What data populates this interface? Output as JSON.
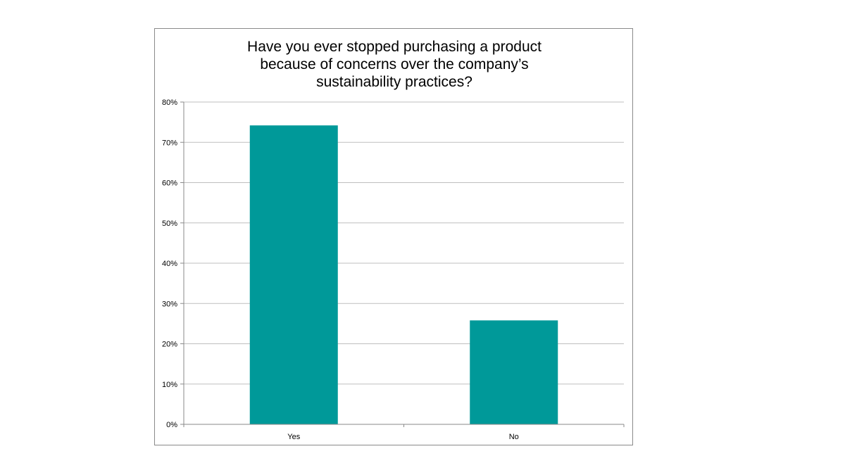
{
  "chart_data": {
    "type": "bar",
    "title": "Have you ever stopped purchasing a product\nbecause of concerns over the company’s\nsustainability practices?",
    "categories": [
      "Yes",
      "No"
    ],
    "values": [
      74.2,
      25.8
    ],
    "ylim": [
      0,
      80
    ],
    "yticks": [
      0,
      10,
      20,
      30,
      40,
      50,
      60,
      70,
      80
    ],
    "ytick_labels": [
      "0%",
      "10%",
      "20%",
      "30%",
      "40%",
      "50%",
      "60%",
      "70%",
      "80%"
    ],
    "grid": true,
    "legend": "none",
    "bar_color": "#009999",
    "grid_color": "#bfbfbf"
  }
}
